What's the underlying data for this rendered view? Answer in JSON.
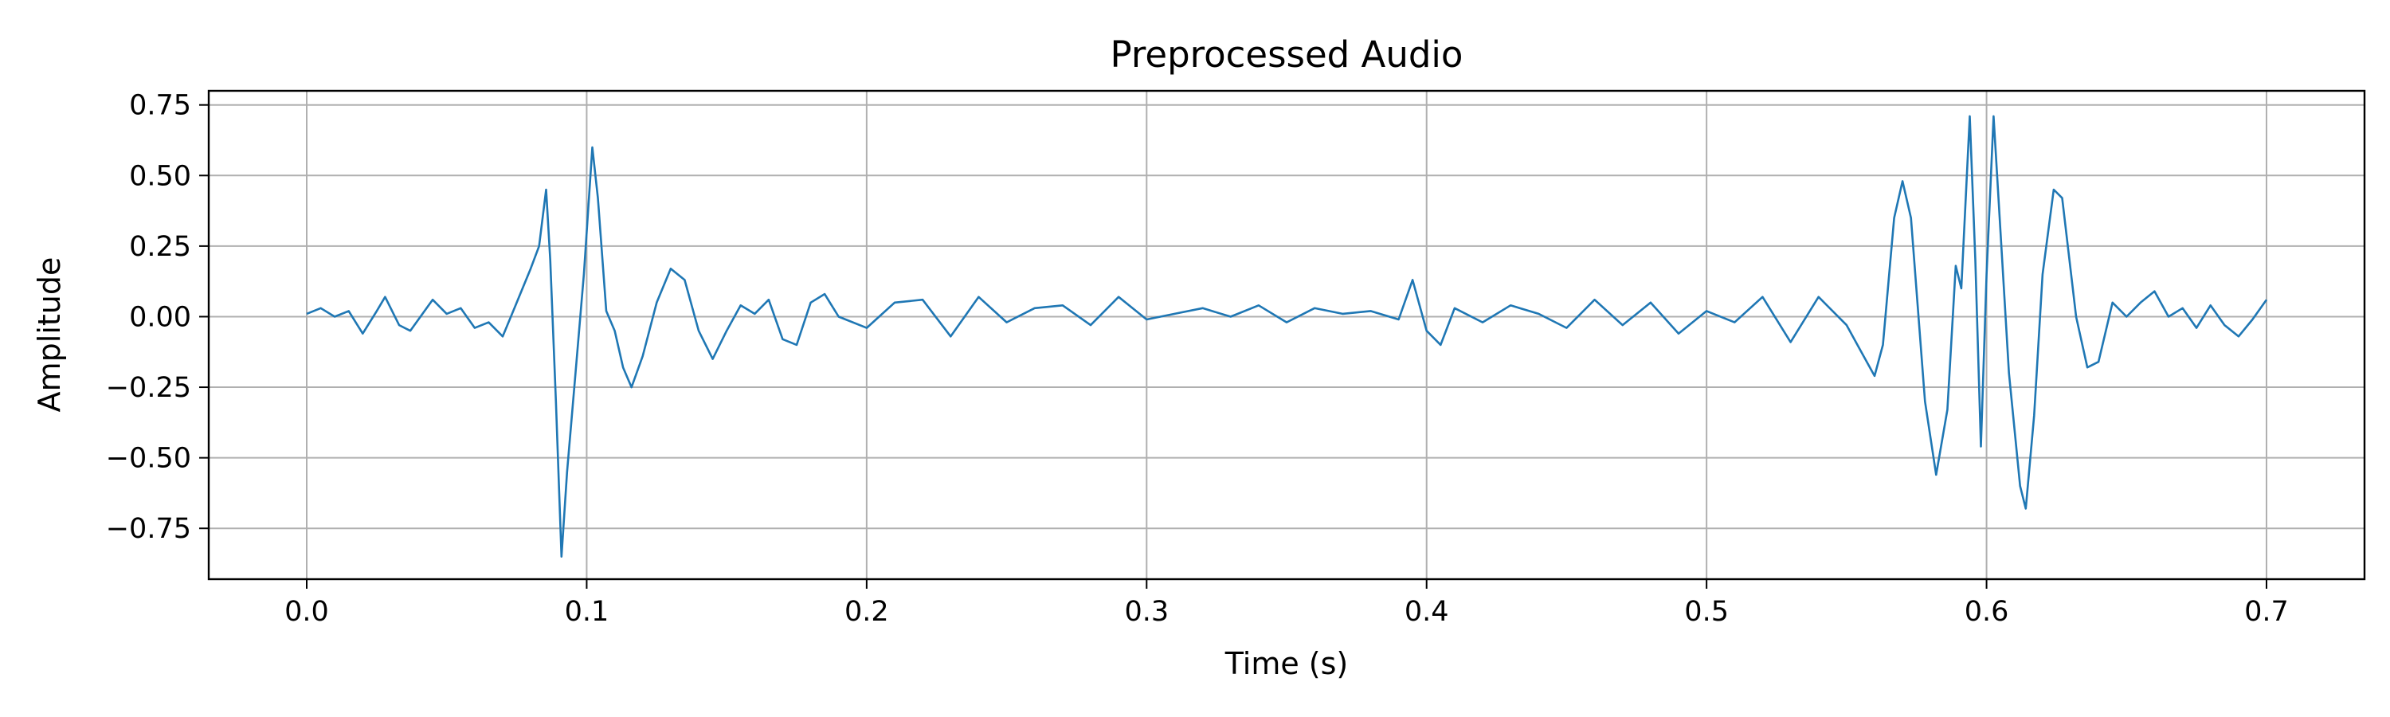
{
  "chart_data": {
    "type": "line",
    "title": "Preprocessed Audio",
    "xlabel": "Time (s)",
    "ylabel": "Amplitude",
    "xlim": [
      -0.035,
      0.735
    ],
    "ylim": [
      -0.93,
      0.8
    ],
    "grid": true,
    "xticks": [
      0.0,
      0.1,
      0.2,
      0.3,
      0.4,
      0.5,
      0.6,
      0.7
    ],
    "xtick_labels": [
      "0.0",
      "0.1",
      "0.2",
      "0.3",
      "0.4",
      "0.5",
      "0.6",
      "0.7"
    ],
    "yticks": [
      0.75,
      0.5,
      0.25,
      0.0,
      -0.25,
      -0.5,
      -0.75
    ],
    "ytick_labels": [
      "0.75",
      "0.50",
      "0.25",
      "0.00",
      "−0.25",
      "−0.50",
      "−0.75"
    ],
    "series": [
      {
        "color": "#1f77b4",
        "points": [
          [
            0.0,
            0.01
          ],
          [
            0.005,
            0.03
          ],
          [
            0.01,
            0.0
          ],
          [
            0.015,
            0.02
          ],
          [
            0.02,
            -0.06
          ],
          [
            0.025,
            0.02
          ],
          [
            0.028,
            0.07
          ],
          [
            0.033,
            -0.03
          ],
          [
            0.037,
            -0.05
          ],
          [
            0.045,
            0.06
          ],
          [
            0.05,
            0.01
          ],
          [
            0.055,
            0.03
          ],
          [
            0.06,
            -0.04
          ],
          [
            0.065,
            -0.02
          ],
          [
            0.07,
            -0.07
          ],
          [
            0.075,
            0.05
          ],
          [
            0.08,
            0.17
          ],
          [
            0.083,
            0.25
          ],
          [
            0.0855,
            0.45
          ],
          [
            0.087,
            0.2
          ],
          [
            0.089,
            -0.3
          ],
          [
            0.091,
            -0.85
          ],
          [
            0.093,
            -0.55
          ],
          [
            0.096,
            -0.2
          ],
          [
            0.099,
            0.15
          ],
          [
            0.102,
            0.6
          ],
          [
            0.104,
            0.42
          ],
          [
            0.107,
            0.02
          ],
          [
            0.11,
            -0.05
          ],
          [
            0.113,
            -0.18
          ],
          [
            0.116,
            -0.25
          ],
          [
            0.12,
            -0.14
          ],
          [
            0.125,
            0.05
          ],
          [
            0.13,
            0.17
          ],
          [
            0.135,
            0.13
          ],
          [
            0.14,
            -0.05
          ],
          [
            0.145,
            -0.15
          ],
          [
            0.15,
            -0.05
          ],
          [
            0.155,
            0.04
          ],
          [
            0.16,
            0.01
          ],
          [
            0.165,
            0.06
          ],
          [
            0.17,
            -0.08
          ],
          [
            0.175,
            -0.1
          ],
          [
            0.18,
            0.05
          ],
          [
            0.185,
            0.08
          ],
          [
            0.19,
            0.0
          ],
          [
            0.2,
            -0.04
          ],
          [
            0.21,
            0.05
          ],
          [
            0.22,
            0.06
          ],
          [
            0.23,
            -0.07
          ],
          [
            0.24,
            0.07
          ],
          [
            0.25,
            -0.02
          ],
          [
            0.26,
            0.03
          ],
          [
            0.27,
            0.04
          ],
          [
            0.28,
            -0.03
          ],
          [
            0.29,
            0.07
          ],
          [
            0.3,
            -0.01
          ],
          [
            0.31,
            0.01
          ],
          [
            0.32,
            0.03
          ],
          [
            0.33,
            0.0
          ],
          [
            0.34,
            0.04
          ],
          [
            0.35,
            -0.02
          ],
          [
            0.36,
            0.03
          ],
          [
            0.37,
            0.01
          ],
          [
            0.38,
            0.02
          ],
          [
            0.39,
            -0.01
          ],
          [
            0.395,
            0.13
          ],
          [
            0.4,
            -0.05
          ],
          [
            0.405,
            -0.1
          ],
          [
            0.41,
            0.03
          ],
          [
            0.42,
            -0.02
          ],
          [
            0.43,
            0.04
          ],
          [
            0.44,
            0.01
          ],
          [
            0.45,
            -0.04
          ],
          [
            0.46,
            0.06
          ],
          [
            0.47,
            -0.03
          ],
          [
            0.48,
            0.05
          ],
          [
            0.49,
            -0.06
          ],
          [
            0.5,
            0.02
          ],
          [
            0.51,
            -0.02
          ],
          [
            0.52,
            0.07
          ],
          [
            0.53,
            -0.09
          ],
          [
            0.54,
            0.07
          ],
          [
            0.55,
            -0.03
          ],
          [
            0.555,
            -0.12
          ],
          [
            0.56,
            -0.21
          ],
          [
            0.563,
            -0.1
          ],
          [
            0.567,
            0.35
          ],
          [
            0.57,
            0.48
          ],
          [
            0.573,
            0.35
          ],
          [
            0.578,
            -0.3
          ],
          [
            0.582,
            -0.56
          ],
          [
            0.586,
            -0.33
          ],
          [
            0.589,
            0.18
          ],
          [
            0.591,
            0.1
          ],
          [
            0.594,
            0.71
          ],
          [
            0.596,
            0.2
          ],
          [
            0.598,
            -0.46
          ],
          [
            0.6,
            0.15
          ],
          [
            0.6025,
            0.71
          ],
          [
            0.605,
            0.3
          ],
          [
            0.608,
            -0.2
          ],
          [
            0.612,
            -0.6
          ],
          [
            0.614,
            -0.68
          ],
          [
            0.617,
            -0.35
          ],
          [
            0.62,
            0.15
          ],
          [
            0.624,
            0.45
          ],
          [
            0.627,
            0.42
          ],
          [
            0.632,
            0.0
          ],
          [
            0.636,
            -0.18
          ],
          [
            0.64,
            -0.16
          ],
          [
            0.645,
            0.05
          ],
          [
            0.65,
            0.0
          ],
          [
            0.655,
            0.05
          ],
          [
            0.66,
            0.09
          ],
          [
            0.665,
            0.0
          ],
          [
            0.67,
            0.03
          ],
          [
            0.675,
            -0.04
          ],
          [
            0.68,
            0.04
          ],
          [
            0.685,
            -0.03
          ],
          [
            0.69,
            -0.07
          ],
          [
            0.695,
            -0.01
          ],
          [
            0.7,
            0.06
          ]
        ]
      }
    ]
  }
}
